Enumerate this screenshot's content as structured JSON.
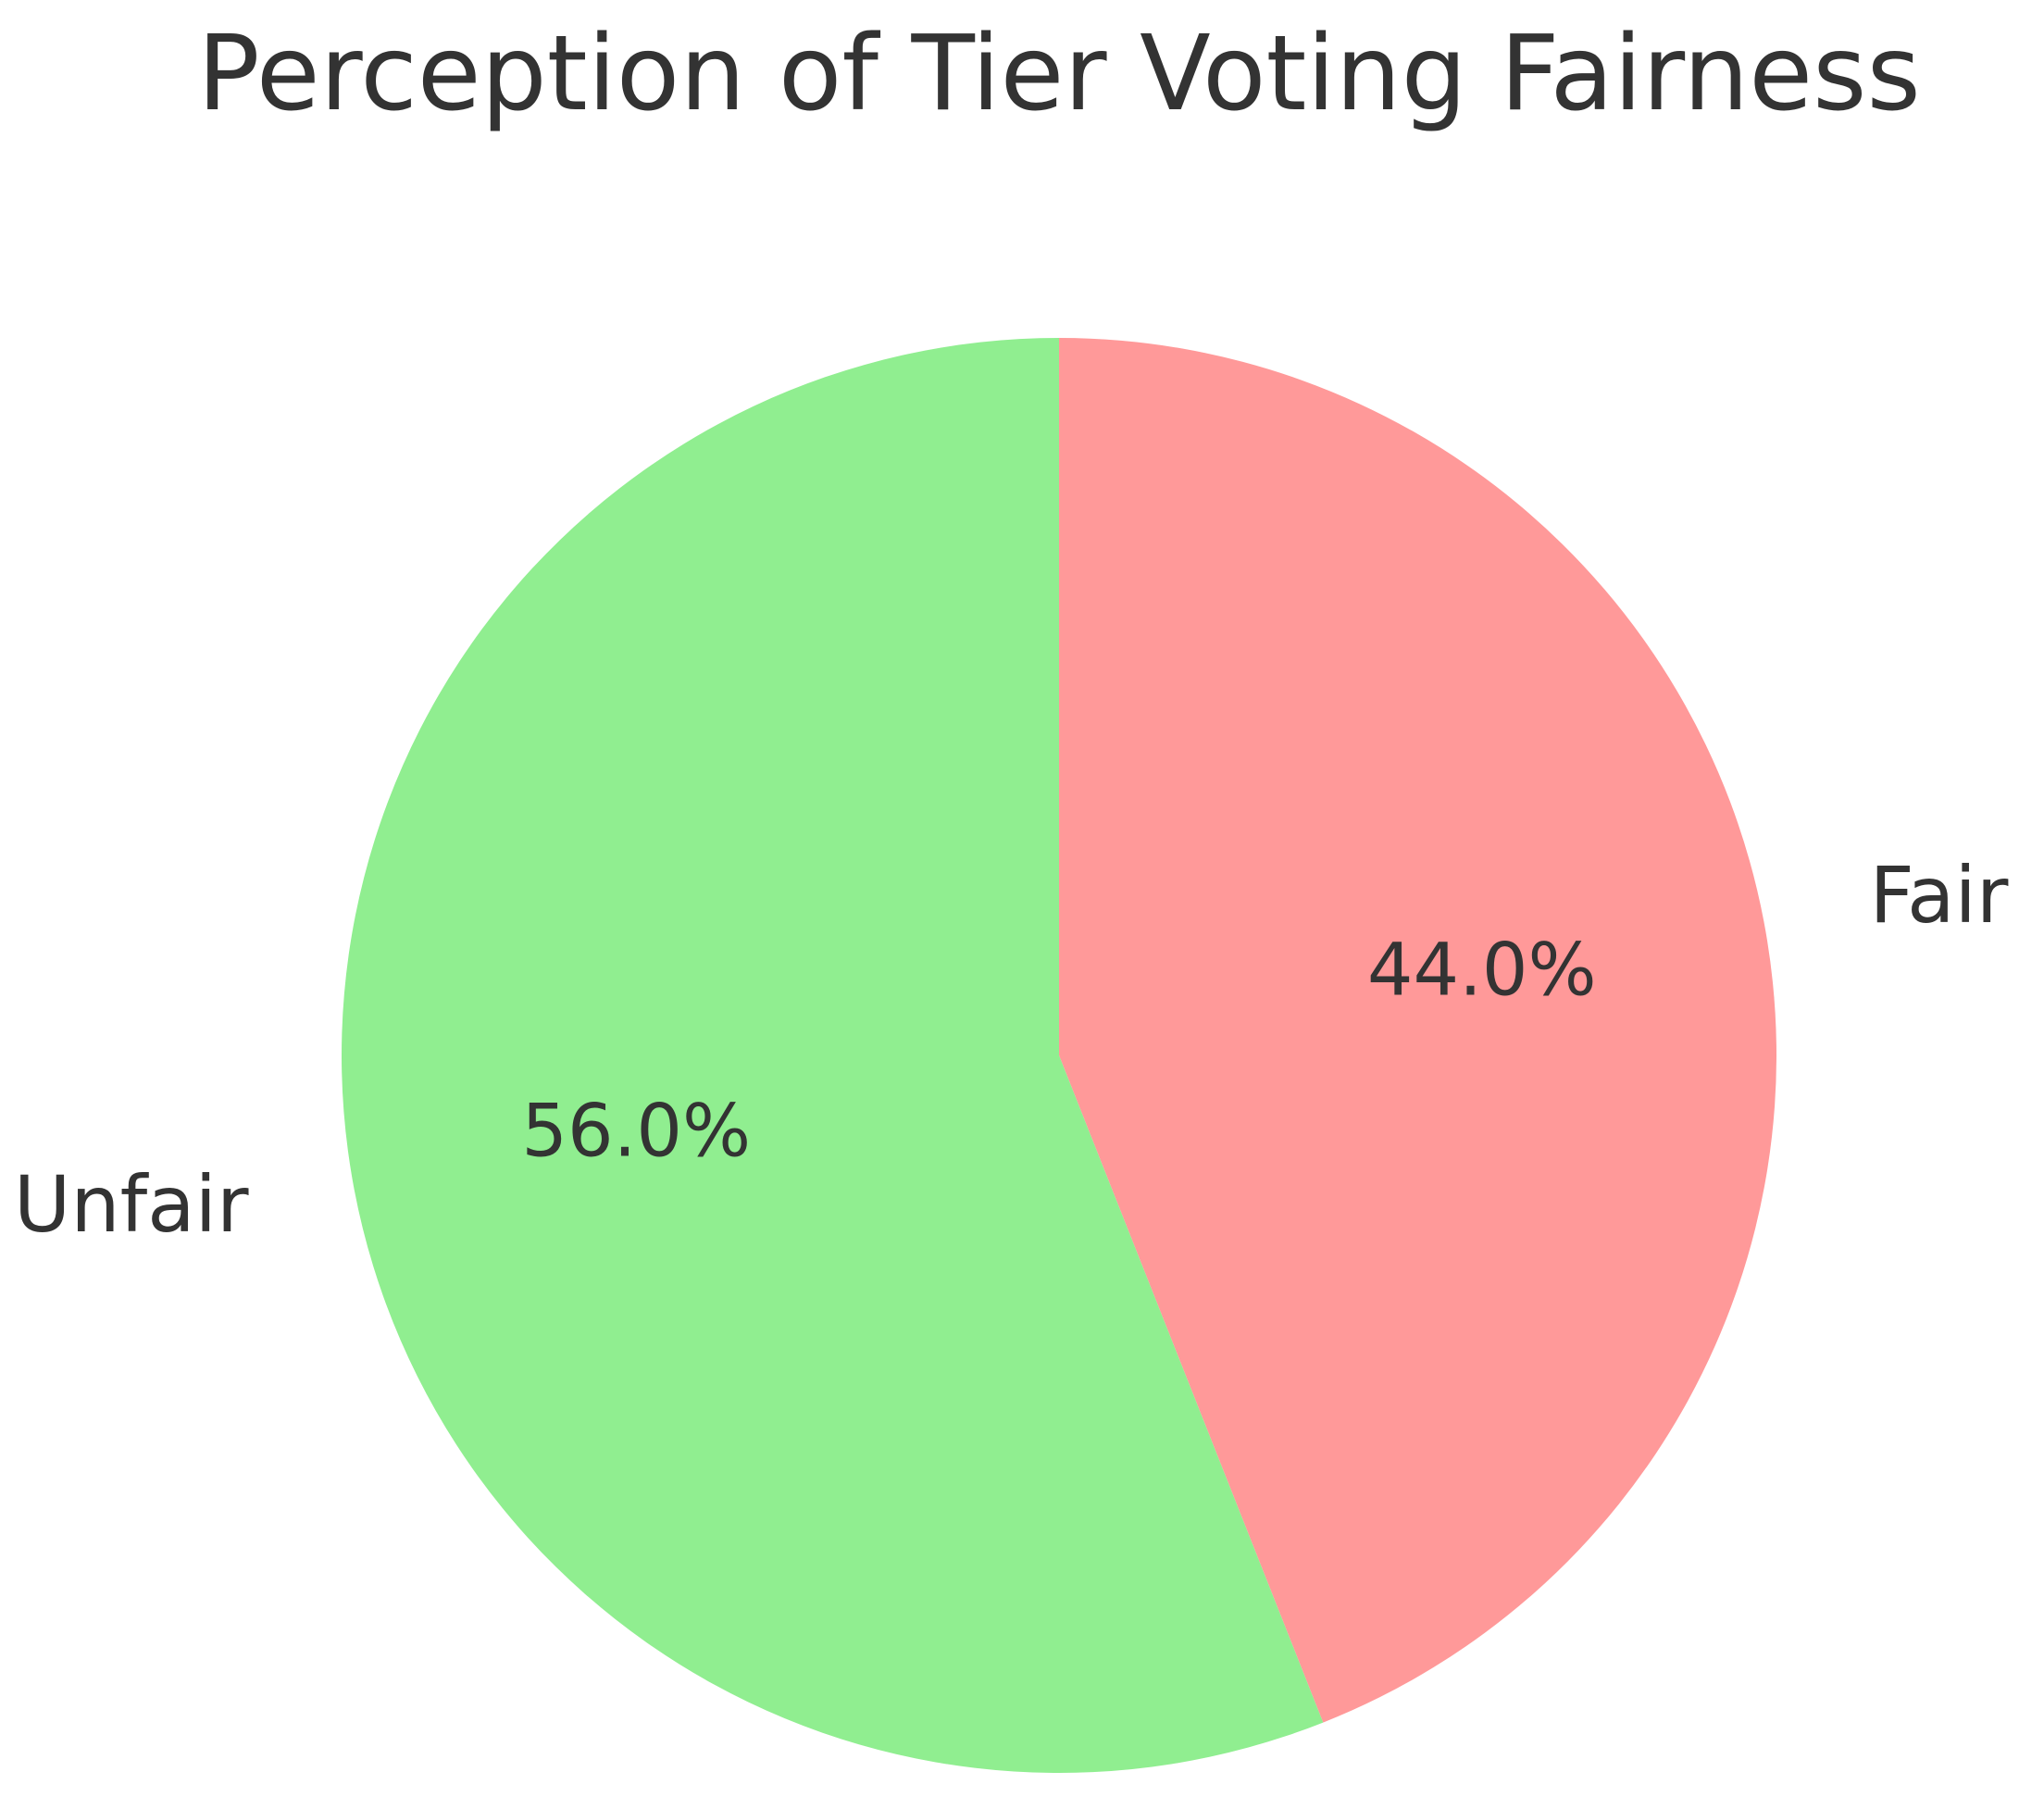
{
  "chart_data": {
    "type": "pie",
    "title": "Perception of Tier Voting Fairness",
    "slices": [
      {
        "label": "Fair",
        "value": 44.0,
        "pct_label": "44.0%",
        "color": "#ff9999"
      },
      {
        "label": "Unfair",
        "value": 56.0,
        "pct_label": "56.0%",
        "color": "#90ee90"
      }
    ],
    "start_angle_deg": 90,
    "direction": "clockwise"
  }
}
